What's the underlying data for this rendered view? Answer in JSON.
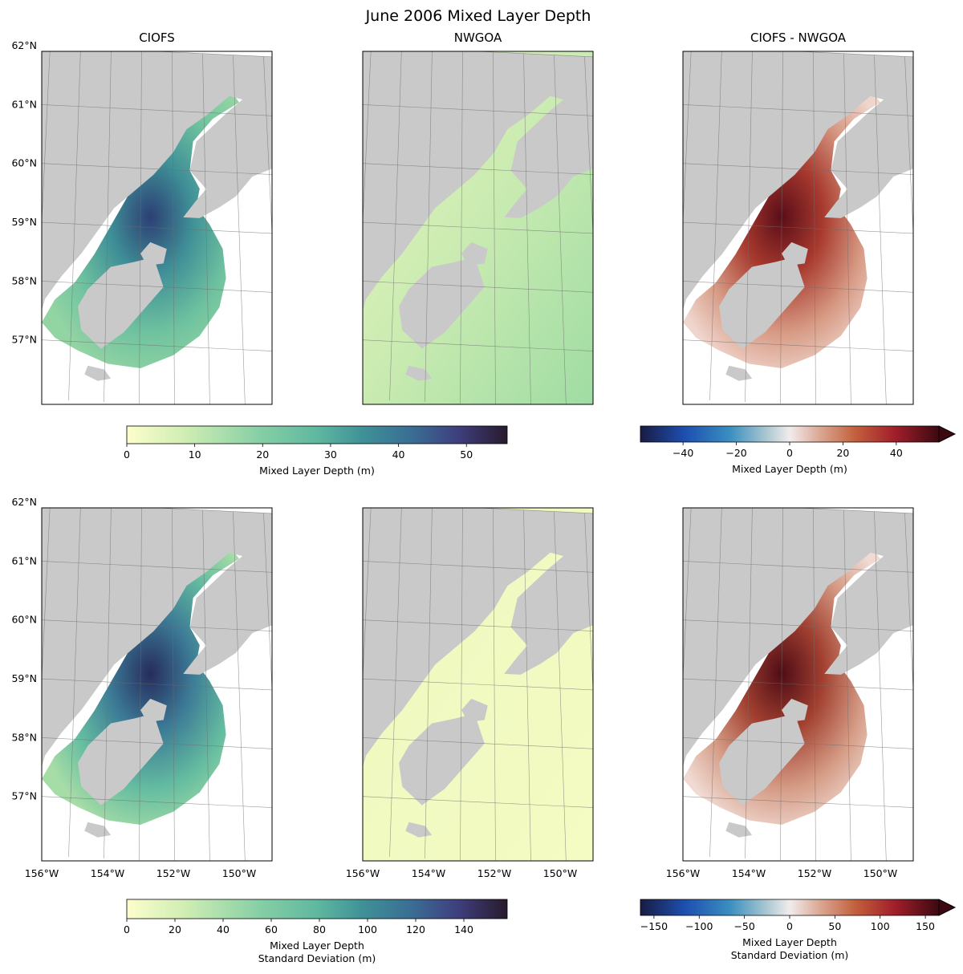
{
  "figure": {
    "title": "June 2006 Mixed Layer Depth"
  },
  "chart_data": [
    {
      "type": "heatmap",
      "panel": "top-left",
      "title": "CIOFS",
      "quantity": "Mixed Layer Depth (m)",
      "lat_ticks": [
        "62°N",
        "61°N",
        "60°N",
        "59°N",
        "58°N",
        "57°N"
      ],
      "lon_ticks": [],
      "xlim": [
        -156,
        -149
      ],
      "ylim": [
        56,
        62
      ],
      "grid": true,
      "colormap": "deep",
      "color_range": [
        0,
        56
      ]
    },
    {
      "type": "heatmap",
      "panel": "top-middle",
      "title": "NWGOA",
      "quantity": "Mixed Layer Depth (m)",
      "lat_ticks": [],
      "lon_ticks": [],
      "xlim": [
        -156,
        -149
      ],
      "ylim": [
        56,
        62
      ],
      "grid": true,
      "colormap": "deep",
      "color_range": [
        0,
        56
      ]
    },
    {
      "type": "heatmap",
      "panel": "top-right",
      "title": "CIOFS - NWGOA",
      "quantity": "Mixed Layer Depth (m)",
      "lat_ticks": [],
      "lon_ticks": [],
      "xlim": [
        -156,
        -149
      ],
      "ylim": [
        56,
        62
      ],
      "grid": true,
      "colormap": "balance",
      "color_range": [
        -56,
        56
      ]
    },
    {
      "type": "heatmap",
      "panel": "bottom-left",
      "title": "",
      "quantity": "Mixed Layer Depth Standard Deviation (m)",
      "lat_ticks": [
        "62°N",
        "61°N",
        "60°N",
        "59°N",
        "58°N",
        "57°N"
      ],
      "lon_ticks": [
        "156°W",
        "154°W",
        "152°W",
        "150°W"
      ],
      "xlim": [
        -156,
        -149
      ],
      "ylim": [
        56,
        62
      ],
      "grid": true,
      "colormap": "deep",
      "color_range": [
        0,
        158
      ]
    },
    {
      "type": "heatmap",
      "panel": "bottom-middle",
      "title": "",
      "quantity": "Mixed Layer Depth Standard Deviation (m)",
      "lat_ticks": [],
      "lon_ticks": [
        "156°W",
        "154°W",
        "152°W",
        "150°W"
      ],
      "xlim": [
        -156,
        -149
      ],
      "ylim": [
        56,
        62
      ],
      "grid": true,
      "colormap": "deep",
      "color_range": [
        0,
        158
      ]
    },
    {
      "type": "heatmap",
      "panel": "bottom-right",
      "title": "",
      "quantity": "Mixed Layer Depth Standard Deviation (m)",
      "lat_ticks": [],
      "lon_ticks": [
        "156°W",
        "154°W",
        "152°W",
        "150°W"
      ],
      "xlim": [
        -156,
        -149
      ],
      "ylim": [
        56,
        62
      ],
      "grid": true,
      "colormap": "balance",
      "color_range": [
        -165,
        165
      ]
    }
  ],
  "colorbars": [
    {
      "id": "cb-top-left",
      "label_lines": [
        "Mixed Layer Depth (m)"
      ],
      "ticks": [
        0,
        10,
        20,
        30,
        40,
        50
      ],
      "range": [
        0,
        56
      ],
      "colormap": "deep",
      "extend": "neither"
    },
    {
      "id": "cb-top-right",
      "label_lines": [
        "Mixed Layer Depth (m)"
      ],
      "ticks": [
        -40,
        -20,
        0,
        20,
        40
      ],
      "range": [
        -56,
        56
      ],
      "colormap": "balance",
      "extend": "max"
    },
    {
      "id": "cb-bottom-left",
      "label_lines": [
        "Mixed Layer Depth",
        "Standard Deviation (m)"
      ],
      "ticks": [
        0,
        20,
        40,
        60,
        80,
        100,
        120,
        140
      ],
      "range": [
        0,
        158
      ],
      "colormap": "deep",
      "extend": "neither"
    },
    {
      "id": "cb-bottom-right",
      "label_lines": [
        "Mixed Layer Depth",
        "Standard Deviation (m)"
      ],
      "ticks": [
        -150,
        -100,
        -50,
        0,
        50,
        100,
        150
      ],
      "range": [
        -165,
        165
      ],
      "colormap": "balance",
      "extend": "max"
    }
  ],
  "colors": {
    "land": "#c9c9c9",
    "ocean": "#ffffff",
    "deep_low": "#fdfecc",
    "deep_mid": "#5fb8a0",
    "deep_high": "#281a2c",
    "balance_low": "#181c43",
    "balance_mid": "#f1ecec",
    "balance_high": "#3c0911"
  }
}
